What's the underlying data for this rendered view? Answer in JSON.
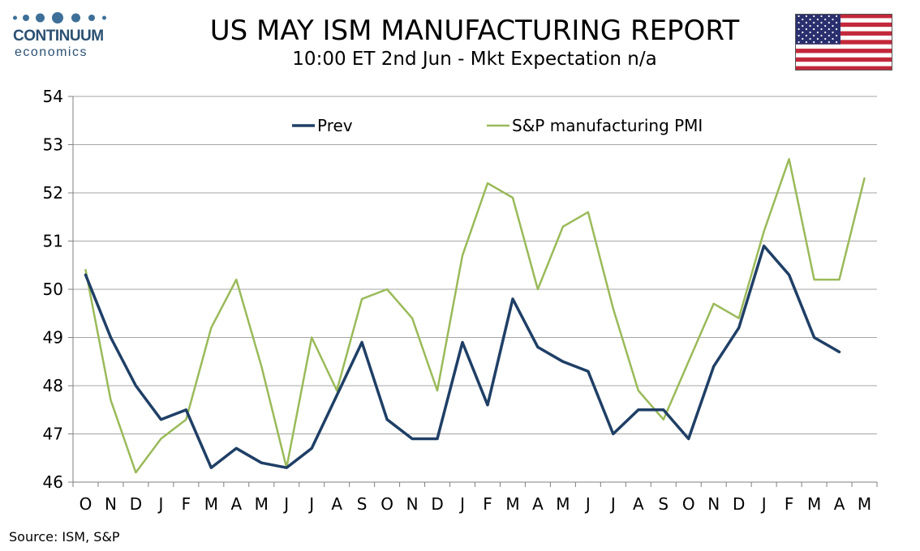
{
  "header": {
    "logo_name": "CONTINUUM",
    "logo_sub": "economics",
    "title": "US MAY ISM MANUFACTURING REPORT",
    "subtitle": "10:00 ET 2nd Jun - Mkt Expectation n/a"
  },
  "flag": {
    "name": "us-flag-icon"
  },
  "source": "Source: ISM, S&P",
  "colors": {
    "prev": "#1f3f66",
    "sp": "#9aba59",
    "grid": "#a6a6a6",
    "logo": "#2b5071"
  },
  "chart_data": {
    "type": "line",
    "categories": [
      "O",
      "N",
      "D",
      "J",
      "F",
      "M",
      "A",
      "M",
      "J",
      "J",
      "A",
      "S",
      "O",
      "N",
      "D",
      "J",
      "F",
      "M",
      "A",
      "M",
      "J",
      "J",
      "A",
      "S",
      "O",
      "N",
      "D",
      "J",
      "F",
      "M",
      "A",
      "M"
    ],
    "ylim": [
      46,
      54
    ],
    "yticks": [
      46,
      47,
      48,
      49,
      50,
      51,
      52,
      53,
      54
    ],
    "grid": true,
    "legend_position": "top",
    "series": [
      {
        "name": "Prev",
        "color": "#1f3f66",
        "values": [
          50.3,
          49.0,
          48.0,
          47.3,
          47.5,
          46.3,
          46.7,
          46.4,
          46.3,
          46.7,
          47.8,
          48.9,
          47.3,
          46.9,
          46.9,
          48.9,
          47.6,
          49.8,
          48.8,
          48.5,
          48.3,
          47.0,
          47.5,
          47.5,
          46.9,
          48.4,
          49.2,
          50.9,
          50.3,
          49.0,
          48.7,
          null
        ]
      },
      {
        "name": "S&P manufacturing PMI",
        "color": "#9aba59",
        "values": [
          50.4,
          47.7,
          46.2,
          46.9,
          47.3,
          49.2,
          50.2,
          48.4,
          46.3,
          49.0,
          47.9,
          49.8,
          50.0,
          49.4,
          47.9,
          50.7,
          52.2,
          51.9,
          50.0,
          51.3,
          51.6,
          49.6,
          47.9,
          47.3,
          48.5,
          49.7,
          49.4,
          51.2,
          52.7,
          50.2,
          50.2,
          52.3
        ]
      }
    ]
  }
}
